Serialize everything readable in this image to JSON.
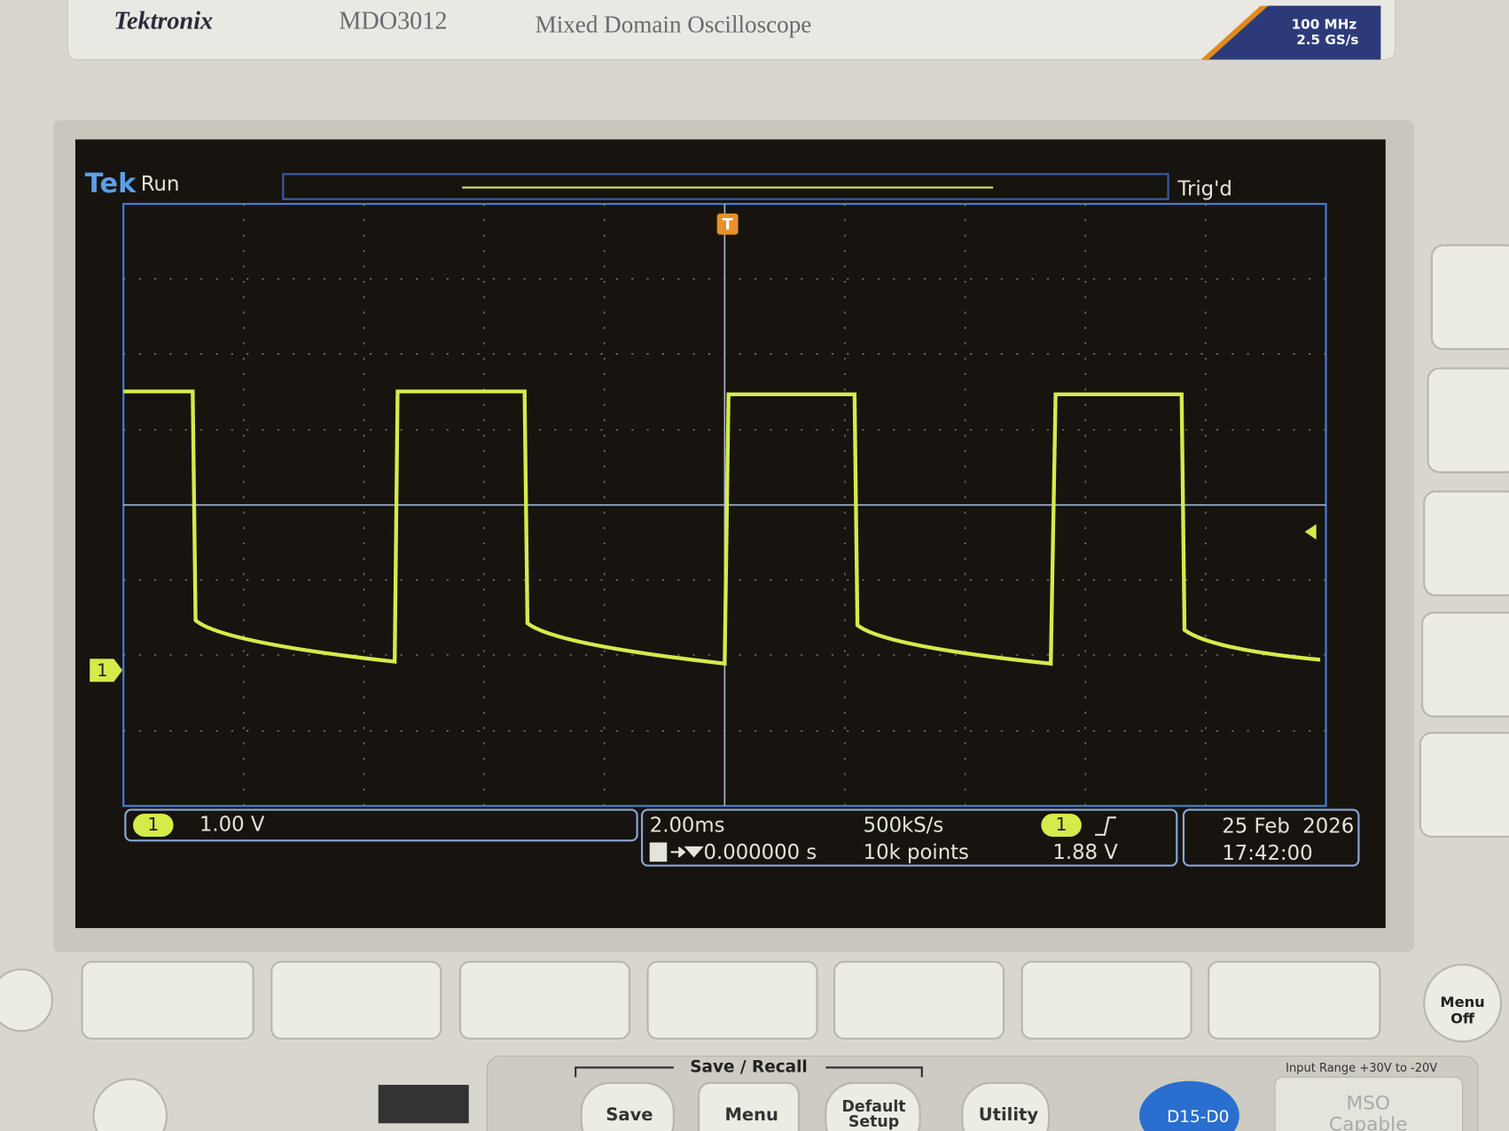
{
  "header": {
    "brand": "Tektronix",
    "model": "MDO3012",
    "description": "Mixed Domain Oscilloscope",
    "badge_bandwidth": "100 MHz",
    "badge_sample_rate": "2.5 GS/s"
  },
  "screen": {
    "logo": "Tek",
    "state": "Run",
    "trigger_status": "Trig'd",
    "trigger_marker": "T",
    "channel_marker": "1",
    "status_bar": {
      "channel": "1",
      "vertical_scale": "1.00 V",
      "horizontal_scale": "2.00ms",
      "trigger_position": "0.000000 s",
      "sample_rate": "500kS/s",
      "record_length": "10k points",
      "trigger_source": "1",
      "trigger_level": "1.88 V",
      "date": "25 Feb  2026",
      "time": "17:42:00"
    }
  },
  "controls": {
    "menu_off": [
      "Menu",
      "Off"
    ],
    "save_recall": "Save / Recall",
    "save": "Save",
    "menu": "Menu",
    "default_setup": [
      "Default",
      "Setup"
    ],
    "utility": "Utility",
    "digital": "D15-D0",
    "input_range": "Input Range +30V to -20V",
    "mso": [
      "MSO",
      "Capable"
    ]
  }
}
